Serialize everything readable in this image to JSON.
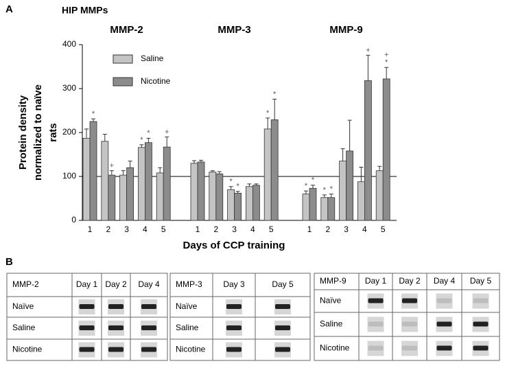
{
  "panel_a_label": "A",
  "chart_data": {
    "type": "bar",
    "title": "HIP MMPs",
    "ylabel": [
      "Protein density",
      "normalized to naïve",
      "rats"
    ],
    "xlabel": "Days of CCP training",
    "ylim": [
      0,
      400
    ],
    "yticks": [
      0,
      100,
      200,
      300,
      400
    ],
    "reference_line": 100,
    "panels": [
      {
        "title": "MMP-2",
        "categories": [
          "1",
          "2",
          "3",
          "4",
          "5"
        ]
      },
      {
        "title": "MMP-3",
        "categories": [
          "1",
          "2",
          "3",
          "4",
          "5"
        ]
      },
      {
        "title": "MMP-9",
        "categories": [
          "1",
          "2",
          "3",
          "4",
          "5"
        ]
      }
    ],
    "series": [
      {
        "name": "Saline",
        "color": "#c4c4c4",
        "values": [
          [
            187,
            180,
            103,
            166,
            108
          ],
          [
            130,
            110,
            70,
            77,
            208
          ],
          [
            60,
            52,
            135,
            88,
            113
          ]
        ],
        "errors": [
          [
            21,
            16,
            10,
            6,
            12
          ],
          [
            6,
            3,
            7,
            6,
            25
          ],
          [
            7,
            6,
            28,
            33,
            10
          ]
        ],
        "markers": [
          [
            null,
            null,
            null,
            [
              "*"
            ],
            null
          ],
          [
            null,
            null,
            [
              "*"
            ],
            null,
            [
              "*"
            ]
          ],
          [
            [
              "*"
            ],
            [
              "*"
            ],
            null,
            null,
            null
          ]
        ]
      },
      {
        "name": "Nicotine",
        "color": "#8c8c8c",
        "values": [
          [
            225,
            103,
            120,
            177,
            167
          ],
          [
            133,
            106,
            62,
            80,
            229
          ],
          [
            73,
            52,
            158,
            318,
            322
          ]
        ],
        "errors": [
          [
            6,
            10,
            15,
            10,
            23
          ],
          [
            4,
            5,
            4,
            3,
            47
          ],
          [
            7,
            8,
            70,
            58,
            26
          ]
        ],
        "markers": [
          [
            [
              "*"
            ],
            [
              "+"
            ],
            null,
            [
              "*"
            ],
            [
              "+"
            ]
          ],
          [
            null,
            null,
            [
              "*"
            ],
            null,
            [
              "*"
            ]
          ],
          [
            [
              "*"
            ],
            [
              "*"
            ],
            null,
            [
              "+"
            ],
            [
              "+",
              "*"
            ]
          ]
        ]
      }
    ]
  },
  "panel_b": {
    "label": "B",
    "tables": [
      {
        "header": [
          "MMP-2",
          "Day 1",
          "Day 2",
          "Day 4"
        ],
        "rows": [
          "Naïve",
          "Saline",
          "Nicotine"
        ]
      },
      {
        "header": [
          "MMP-3",
          "Day 3",
          "Day 5"
        ],
        "rows": [
          "Naïve",
          "Saline",
          "Nicotine"
        ]
      },
      {
        "header": [
          "MMP-9",
          "Day 1",
          "Day 2",
          "Day 4",
          "Day 5"
        ],
        "rows": [
          "Naïve",
          "Saline",
          "Nicotine"
        ]
      }
    ]
  }
}
